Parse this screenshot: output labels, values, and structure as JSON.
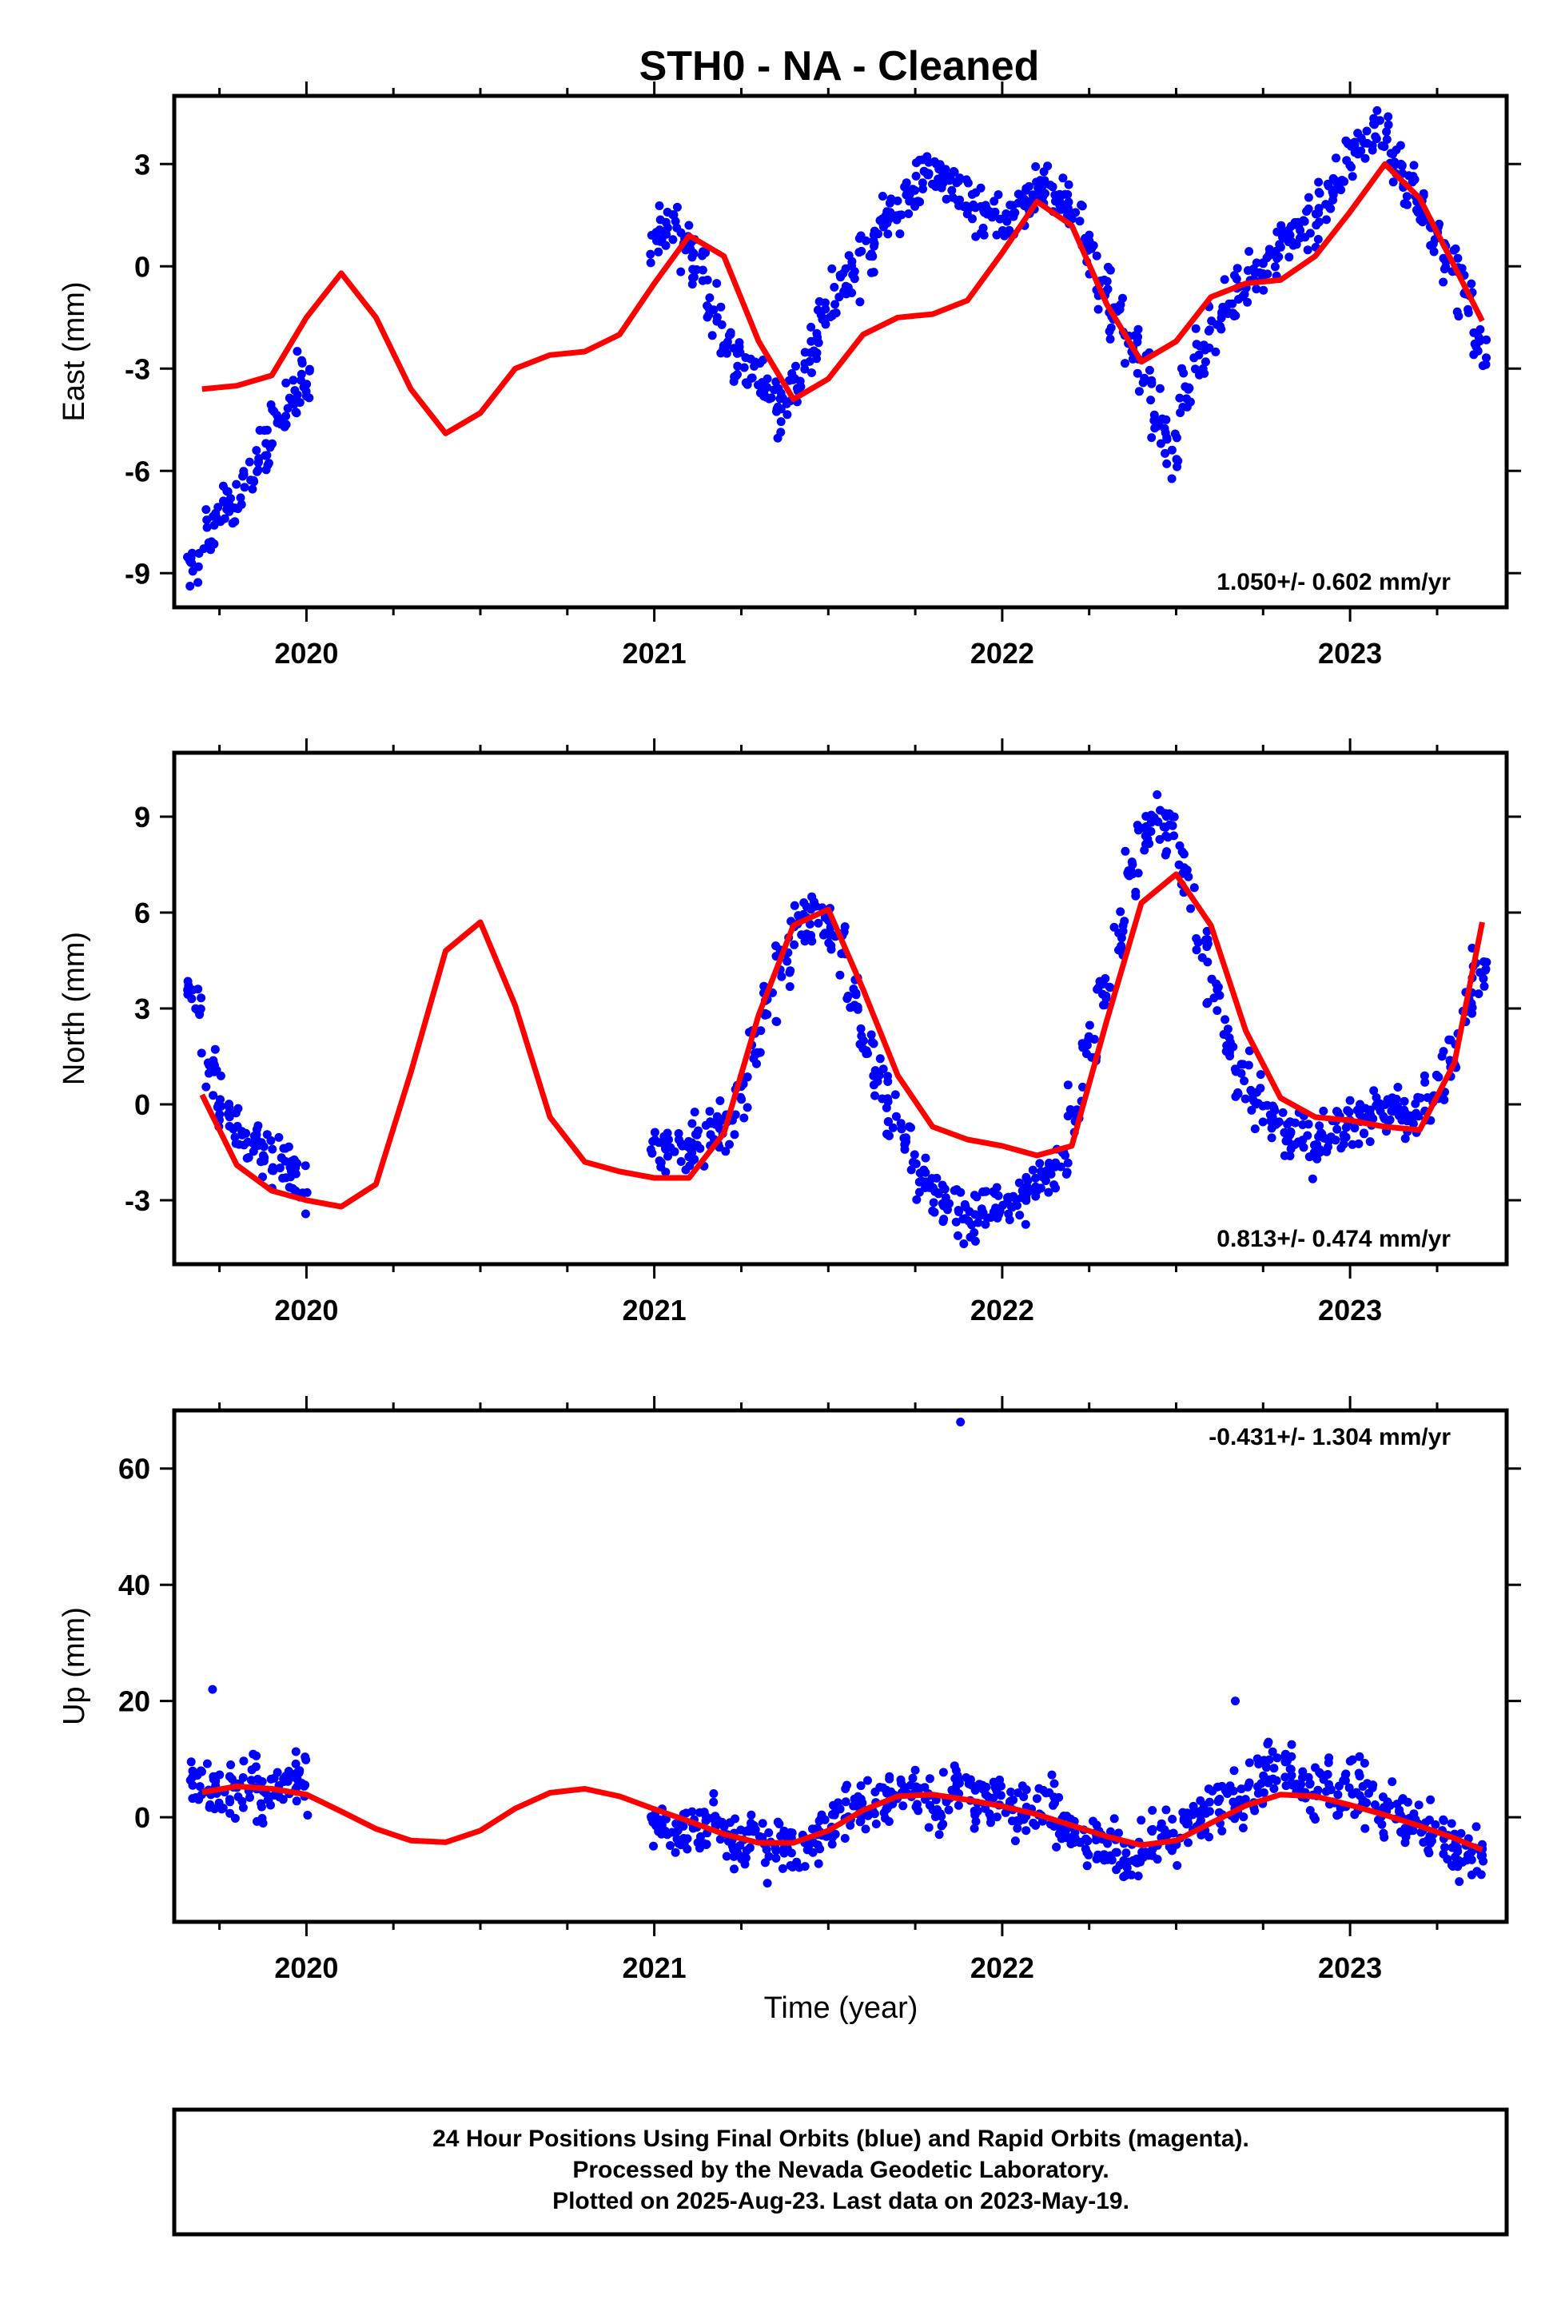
{
  "title": "STH0  - NA - Cleaned",
  "xlabel": "Time (year)",
  "footer": {
    "line1": "24 Hour Positions Using Final Orbits (blue) and Rapid Orbits (magenta).",
    "line2": "Processed by the Nevada Geodetic Laboratory.",
    "line3": "Plotted on 2025-Aug-23. Last data on 2023-May-19."
  },
  "colors": {
    "points": "#0000ff",
    "model": "#ff0000",
    "frame": "#000000"
  },
  "chart_data": [
    {
      "type": "scatter",
      "ylabel": "East (mm)",
      "rate_label": "1.050+/- 0.602 mm/yr",
      "xlim": [
        2019.62,
        2023.45
      ],
      "ylim": [
        -10.0,
        5.0
      ],
      "xticks": [
        2020,
        2021,
        2022,
        2023
      ],
      "yticks": [
        -9,
        -6,
        -3,
        0,
        3
      ],
      "model": {
        "x": [
          2019.7,
          2019.8,
          2019.9,
          2020.0,
          2020.1,
          2020.2,
          2020.3,
          2020.4,
          2020.5,
          2020.6,
          2020.7,
          2020.8,
          2020.9,
          2021.0,
          2021.1,
          2021.2,
          2021.3,
          2021.4,
          2021.5,
          2021.6,
          2021.7,
          2021.8,
          2021.9,
          2022.0,
          2022.1,
          2022.2,
          2022.3,
          2022.4,
          2022.5,
          2022.6,
          2022.7,
          2022.8,
          2022.9,
          2023.0,
          2023.1,
          2023.2,
          2023.3,
          2023.38
        ],
        "y": [
          -3.6,
          -3.5,
          -3.2,
          -1.5,
          -0.2,
          -1.5,
          -3.6,
          -4.9,
          -4.3,
          -3.0,
          -2.6,
          -2.5,
          -2.0,
          -0.5,
          0.9,
          0.3,
          -2.2,
          -3.9,
          -3.3,
          -2.0,
          -1.5,
          -1.4,
          -1.0,
          0.4,
          1.9,
          1.2,
          -1.1,
          -2.8,
          -2.2,
          -0.9,
          -0.5,
          -0.4,
          0.3,
          1.6,
          3.0,
          2.0,
          0.0,
          -1.6
        ]
      },
      "points": {
        "x": [
          2019.68,
          2019.72,
          2019.76,
          2019.8,
          2019.84,
          2019.88,
          2019.92,
          2019.96,
          2019.99,
          2021.01,
          2021.05,
          2021.09,
          2021.13,
          2021.17,
          2021.21,
          2021.25,
          2021.29,
          2021.33,
          2021.37,
          2021.41,
          2021.45,
          2021.49,
          2021.53,
          2021.57,
          2021.61,
          2021.65,
          2021.69,
          2021.73,
          2021.77,
          2021.81,
          2021.85,
          2021.89,
          2021.93,
          2021.97,
          2022.01,
          2022.05,
          2022.09,
          2022.13,
          2022.17,
          2022.21,
          2022.25,
          2022.29,
          2022.33,
          2022.37,
          2022.41,
          2022.45,
          2022.49,
          2022.53,
          2022.57,
          2022.61,
          2022.65,
          2022.69,
          2022.73,
          2022.77,
          2022.81,
          2022.85,
          2022.89,
          2022.93,
          2022.97,
          2023.01,
          2023.05,
          2023.09,
          2023.13,
          2023.17,
          2023.21,
          2023.25,
          2023.29,
          2023.33,
          2023.37
        ],
        "y": [
          -8.6,
          -7.6,
          -6.9,
          -6.8,
          -6.2,
          -5.3,
          -4.5,
          -3.9,
          -3.3,
          0.9,
          1.3,
          0.5,
          -0.1,
          -1.2,
          -2.2,
          -2.9,
          -3.2,
          -3.5,
          -4.4,
          -3.6,
          -2.5,
          -1.6,
          -0.9,
          -0.2,
          0.6,
          1.1,
          1.6,
          2.1,
          2.5,
          2.7,
          2.6,
          2.1,
          1.7,
          1.5,
          1.3,
          1.7,
          2.1,
          2.2,
          1.8,
          1.3,
          0.5,
          -0.6,
          -1.4,
          -2.2,
          -3.2,
          -4.5,
          -5.5,
          -3.6,
          -2.6,
          -1.8,
          -1.1,
          -0.4,
          -0.2,
          0.3,
          0.8,
          1.0,
          1.3,
          1.9,
          2.6,
          3.1,
          3.7,
          3.9,
          3.2,
          2.5,
          1.6,
          0.9,
          0.1,
          -0.8,
          -2.4
        ]
      }
    },
    {
      "type": "scatter",
      "ylabel": "North (mm)",
      "rate_label": "0.813+/- 0.474 mm/yr",
      "xlim": [
        2019.62,
        2023.45
      ],
      "ylim": [
        -5.0,
        11.0
      ],
      "xticks": [
        2020,
        2021,
        2022,
        2023
      ],
      "yticks": [
        -3,
        0,
        3,
        6,
        9
      ],
      "model": {
        "x": [
          2019.7,
          2019.8,
          2019.9,
          2020.0,
          2020.1,
          2020.2,
          2020.3,
          2020.4,
          2020.5,
          2020.6,
          2020.7,
          2020.8,
          2020.9,
          2021.0,
          2021.1,
          2021.2,
          2021.3,
          2021.4,
          2021.5,
          2021.6,
          2021.7,
          2021.8,
          2021.9,
          2022.0,
          2022.1,
          2022.2,
          2022.3,
          2022.4,
          2022.5,
          2022.6,
          2022.7,
          2022.8,
          2022.9,
          2023.0,
          2023.1,
          2023.2,
          2023.3,
          2023.38
        ],
        "y": [
          0.3,
          -1.9,
          -2.7,
          -3.0,
          -3.2,
          -2.5,
          1.0,
          4.8,
          5.7,
          3.1,
          -0.4,
          -1.8,
          -2.1,
          -2.3,
          -2.3,
          -0.9,
          2.8,
          5.6,
          6.1,
          3.6,
          0.9,
          -0.7,
          -1.1,
          -1.3,
          -1.6,
          -1.3,
          2.6,
          6.3,
          7.2,
          5.6,
          2.3,
          0.2,
          -0.4,
          -0.5,
          -0.7,
          -0.8,
          1.3,
          5.7
        ]
      },
      "points": {
        "x": [
          2019.68,
          2019.72,
          2019.76,
          2019.8,
          2019.84,
          2019.88,
          2019.92,
          2019.96,
          2019.99,
          2021.01,
          2021.05,
          2021.09,
          2021.13,
          2021.17,
          2021.21,
          2021.25,
          2021.29,
          2021.33,
          2021.37,
          2021.41,
          2021.45,
          2021.49,
          2021.53,
          2021.57,
          2021.61,
          2021.65,
          2021.69,
          2021.73,
          2021.77,
          2021.81,
          2021.85,
          2021.89,
          2021.93,
          2021.97,
          2022.01,
          2022.05,
          2022.09,
          2022.13,
          2022.17,
          2022.21,
          2022.25,
          2022.29,
          2022.33,
          2022.37,
          2022.41,
          2022.45,
          2022.49,
          2022.53,
          2022.57,
          2022.61,
          2022.65,
          2022.69,
          2022.73,
          2022.77,
          2022.81,
          2022.85,
          2022.89,
          2022.93,
          2022.97,
          2023.01,
          2023.05,
          2023.09,
          2023.13,
          2023.17,
          2023.21,
          2023.25,
          2023.29,
          2023.33,
          2023.37
        ],
        "y": [
          3.2,
          1.1,
          -0.1,
          -0.6,
          -1.2,
          -1.5,
          -1.8,
          -2.1,
          -2.4,
          -1.4,
          -1.3,
          -1.5,
          -1.1,
          -1.0,
          -0.7,
          0.5,
          2.0,
          3.3,
          4.7,
          5.7,
          6.0,
          5.7,
          5.0,
          3.4,
          1.9,
          0.7,
          -0.3,
          -1.3,
          -2.2,
          -2.9,
          -3.2,
          -3.5,
          -3.6,
          -3.3,
          -3.1,
          -2.9,
          -2.5,
          -2.4,
          -1.6,
          -0.2,
          1.6,
          3.6,
          5.3,
          7.2,
          8.3,
          9.0,
          8.6,
          7.1,
          5.2,
          3.4,
          1.9,
          0.9,
          0.1,
          -0.4,
          -0.9,
          -1.0,
          -1.3,
          -1.1,
          -0.7,
          -0.6,
          -0.6,
          -0.3,
          -0.1,
          -0.4,
          0.1,
          0.8,
          1.7,
          3.0,
          4.2
        ]
      }
    },
    {
      "type": "scatter",
      "ylabel": "Up (mm)",
      "rate_label": "-0.431+/- 1.304 mm/yr",
      "xlim": [
        2019.62,
        2023.45
      ],
      "ylim": [
        -18.0,
        70.0
      ],
      "xticks": [
        2020,
        2021,
        2022,
        2023
      ],
      "yticks": [
        0,
        20,
        40,
        60
      ],
      "model": {
        "x": [
          2019.7,
          2019.8,
          2019.9,
          2020.0,
          2020.1,
          2020.2,
          2020.3,
          2020.4,
          2020.5,
          2020.6,
          2020.7,
          2020.8,
          2020.9,
          2021.0,
          2021.1,
          2021.2,
          2021.3,
          2021.4,
          2021.5,
          2021.6,
          2021.7,
          2021.8,
          2021.9,
          2022.0,
          2022.1,
          2022.2,
          2022.3,
          2022.4,
          2022.5,
          2022.6,
          2022.7,
          2022.8,
          2022.9,
          2023.0,
          2023.1,
          2023.2,
          2023.3,
          2023.38
        ],
        "y": [
          4.3,
          5.3,
          4.9,
          3.9,
          1.0,
          -2.0,
          -4.0,
          -4.3,
          -2.3,
          1.5,
          4.2,
          4.9,
          3.6,
          1.4,
          -0.7,
          -2.9,
          -4.4,
          -4.4,
          -2.3,
          1.2,
          3.6,
          3.9,
          3.0,
          1.9,
          0.5,
          -1.4,
          -3.3,
          -4.8,
          -4.0,
          -1.0,
          2.0,
          3.9,
          3.6,
          2.1,
          0.4,
          -1.5,
          -3.6,
          -5.6
        ]
      },
      "points": {
        "x": [
          2019.68,
          2019.72,
          2019.76,
          2019.8,
          2019.84,
          2019.88,
          2019.92,
          2019.96,
          2019.99,
          2021.01,
          2021.05,
          2021.09,
          2021.13,
          2021.17,
          2021.21,
          2021.25,
          2021.29,
          2021.33,
          2021.37,
          2021.41,
          2021.45,
          2021.49,
          2021.53,
          2021.57,
          2021.61,
          2021.65,
          2021.69,
          2021.73,
          2021.77,
          2021.81,
          2021.85,
          2021.89,
          2021.93,
          2021.97,
          2022.01,
          2022.05,
          2022.09,
          2022.13,
          2022.17,
          2022.21,
          2022.25,
          2022.29,
          2022.33,
          2022.37,
          2022.41,
          2022.45,
          2022.49,
          2022.53,
          2022.57,
          2022.61,
          2022.65,
          2022.69,
          2022.73,
          2022.77,
          2022.81,
          2022.85,
          2022.89,
          2022.93,
          2022.97,
          2023.01,
          2023.05,
          2023.09,
          2023.13,
          2023.17,
          2023.21,
          2023.25,
          2023.29,
          2023.33,
          2023.37
        ],
        "y": [
          6,
          5,
          4,
          5,
          6,
          4,
          5,
          7,
          6,
          0,
          -1,
          -2,
          -3,
          -1,
          -4,
          -5,
          -3,
          -6,
          -5,
          -4,
          -5,
          -2,
          -1,
          1,
          3,
          2,
          4,
          6,
          3,
          1,
          4,
          5,
          2,
          3,
          2,
          1,
          0,
          2,
          -1,
          -2,
          -4,
          -6,
          -5,
          -8,
          -6,
          -3,
          -4,
          -1,
          0,
          1,
          4,
          2,
          6,
          8,
          9,
          7,
          5,
          6,
          4,
          5,
          3,
          2,
          1,
          -1,
          -3,
          -2,
          -5,
          -6,
          -7
        ]
      },
      "outliers": {
        "x": [
          2019.73,
          2021.88,
          2022.67
        ],
        "y": [
          22,
          68,
          20
        ]
      }
    }
  ]
}
